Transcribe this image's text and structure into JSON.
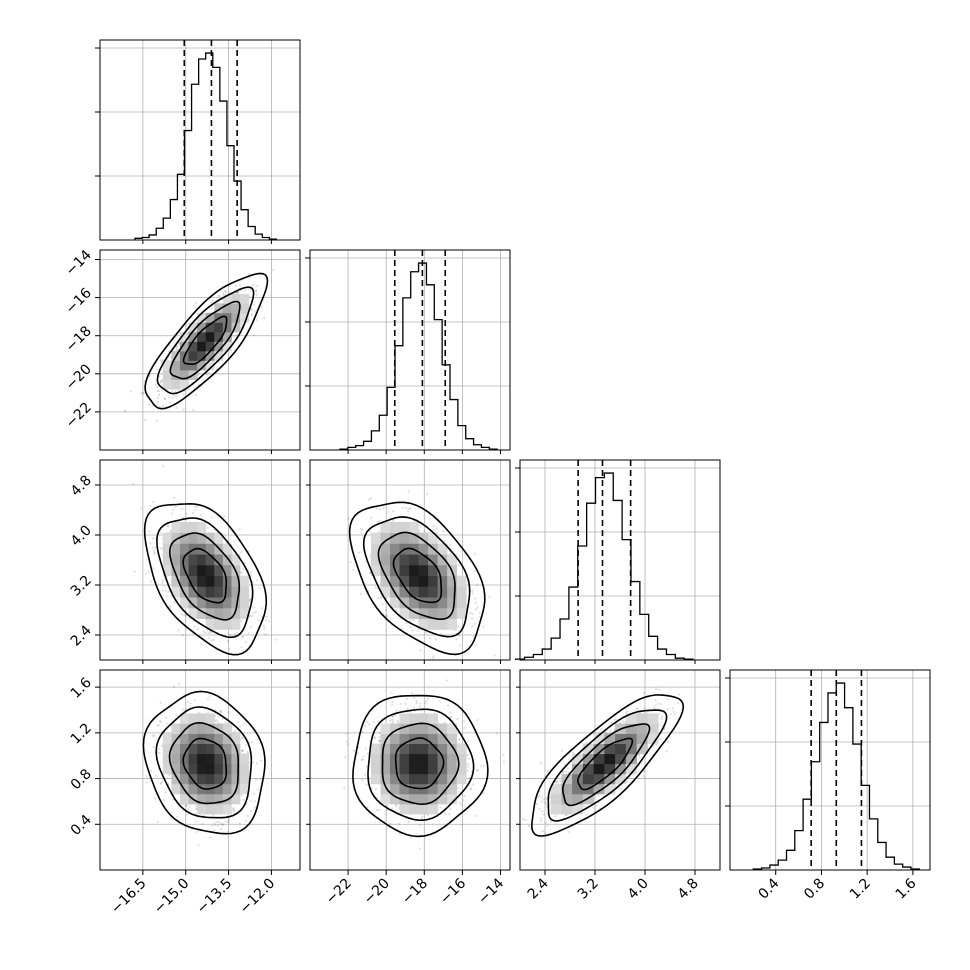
{
  "chart_data": {
    "type": "corner",
    "parameters": 4,
    "quantiles": [
      0.16,
      0.5,
      0.84
    ],
    "axes": [
      {
        "range": [
          -18,
          -11
        ],
        "ticks": [
          -16.5,
          -15.0,
          -13.5,
          -12.0
        ],
        "tick_labels": [
          "−16.5",
          "−15.0",
          "−13.5",
          "−12.0"
        ],
        "mean": -14.3,
        "sd": 0.75,
        "quantile_values": [
          -15.05,
          -14.1,
          -13.2
        ],
        "hist_counts": [
          2,
          3,
          6,
          14,
          26,
          48,
          78,
          130,
          185,
          215,
          222,
          205,
          165,
          112,
          70,
          36,
          16,
          7,
          3,
          1
        ]
      },
      {
        "range": [
          -24,
          -13.5
        ],
        "ticks": [
          -22,
          -20,
          -18,
          -16,
          -14
        ],
        "tick_labels": [
          "−22",
          "−20",
          "−18",
          "−16",
          "−14"
        ],
        "mean": -18.3,
        "sd": 1.25,
        "quantile_values": [
          -19.55,
          -18.1,
          -16.9
        ],
        "hist_counts": [
          1,
          3,
          5,
          10,
          22,
          40,
          72,
          120,
          175,
          205,
          215,
          190,
          150,
          98,
          58,
          28,
          13,
          6,
          3,
          1
        ]
      },
      {
        "range": [
          2.0,
          5.2
        ],
        "ticks": [
          2.4,
          3.2,
          4.0,
          4.8
        ],
        "tick_labels": [
          "2.4",
          "3.2",
          "4.0",
          "4.8"
        ],
        "mean": 3.35,
        "sd": 0.43,
        "quantile_values": [
          2.93,
          3.32,
          3.77
        ],
        "hist_counts": [
          1,
          3,
          6,
          12,
          24,
          45,
          80,
          125,
          172,
          200,
          205,
          175,
          132,
          86,
          50,
          26,
          12,
          6,
          2,
          1
        ]
      },
      {
        "range": [
          0.0,
          1.75
        ],
        "ticks": [
          0.4,
          0.8,
          1.2,
          1.6
        ],
        "tick_labels": [
          "0.4",
          "0.8",
          "1.2",
          "1.6"
        ],
        "mean": 0.93,
        "sd": 0.22,
        "quantile_values": [
          0.71,
          0.93,
          1.15
        ],
        "hist_counts": [
          1,
          2,
          5,
          10,
          20,
          40,
          72,
          110,
          150,
          180,
          190,
          165,
          128,
          86,
          52,
          28,
          13,
          6,
          3,
          1
        ]
      }
    ],
    "correlations": [
      [
        1.0,
        0.8,
        -0.45,
        -0.15
      ],
      [
        0.8,
        1.0,
        -0.45,
        0.0
      ],
      [
        -0.45,
        -0.45,
        1.0,
        0.8
      ],
      [
        -0.15,
        0.0,
        0.8,
        1.0
      ]
    ],
    "contour_levels_sigma": [
      1.0,
      1.6,
      2.2,
      2.8
    ],
    "grid": true
  }
}
